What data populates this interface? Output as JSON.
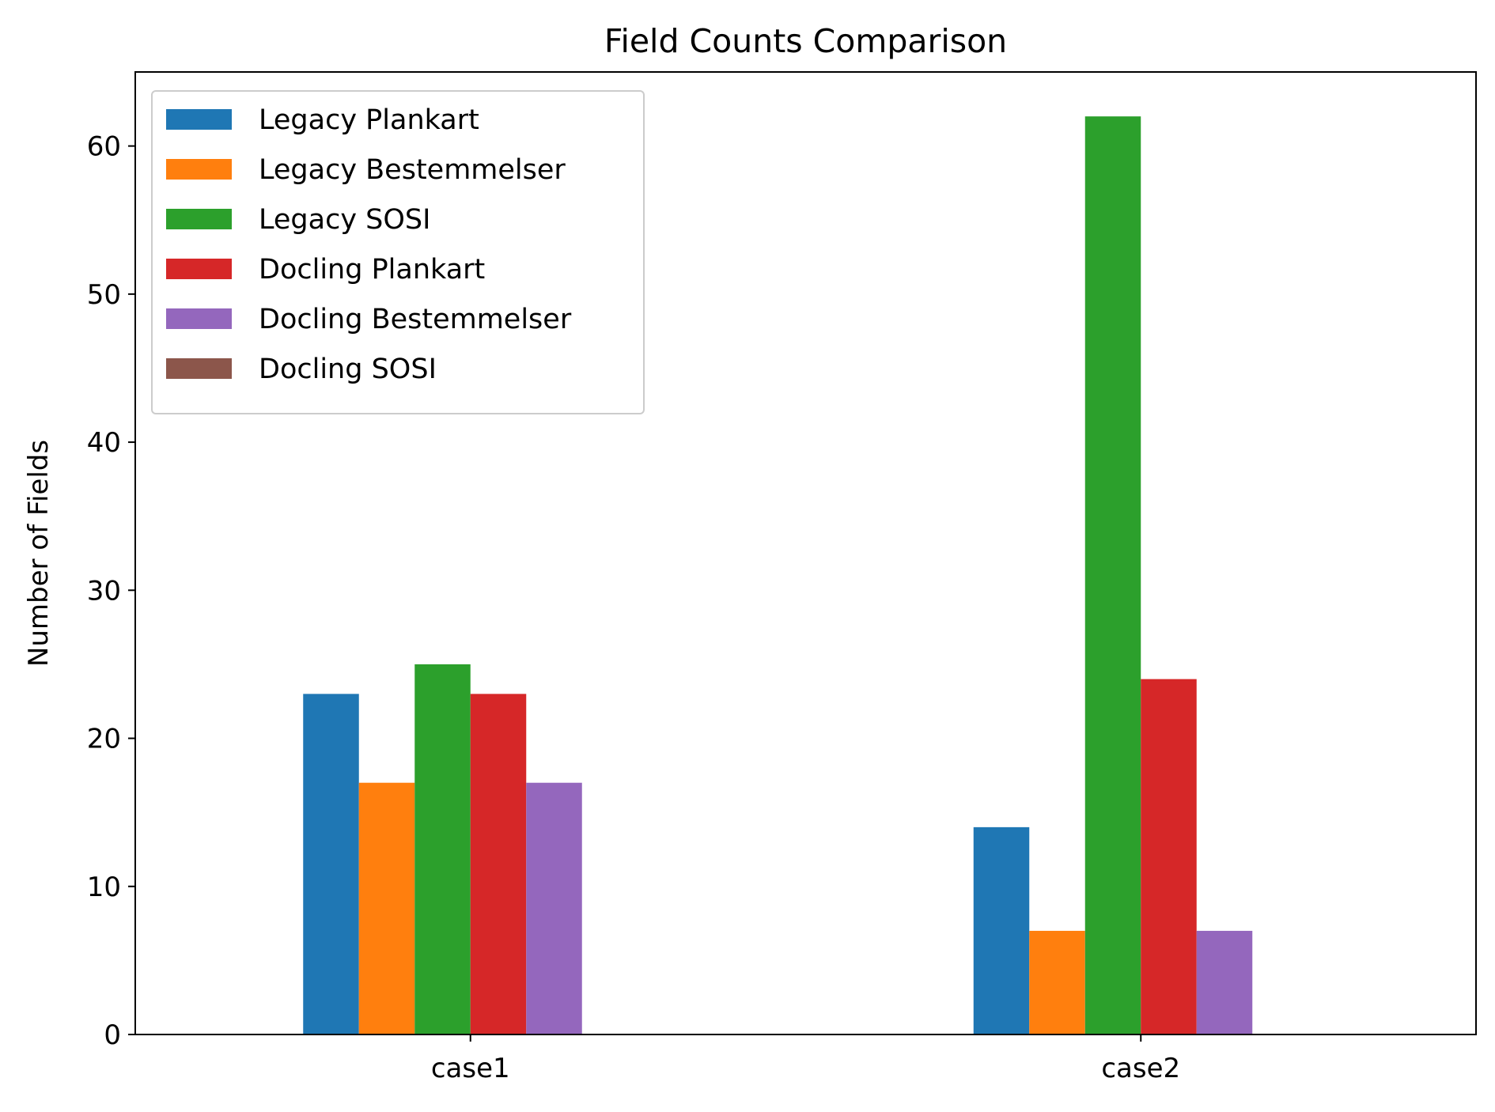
{
  "chart_data": {
    "type": "bar",
    "title": "Field Counts Comparison",
    "xlabel": "",
    "ylabel": "Number of Fields",
    "categories": [
      "case1",
      "case2"
    ],
    "ylim": [
      0,
      65
    ],
    "yticks": [
      0,
      10,
      20,
      30,
      40,
      50,
      60
    ],
    "grid": false,
    "legend_position": "top-left",
    "series": [
      {
        "name": "Legacy Plankart",
        "color": "#1f77b4",
        "values": [
          23,
          14
        ]
      },
      {
        "name": "Legacy Bestemmelser",
        "color": "#ff7f0e",
        "values": [
          17,
          7
        ]
      },
      {
        "name": "Legacy SOSI",
        "color": "#2ca02c",
        "values": [
          25,
          62
        ]
      },
      {
        "name": "Docling Plankart",
        "color": "#d62728",
        "values": [
          23,
          24
        ]
      },
      {
        "name": "Docling Bestemmelser",
        "color": "#9467bd",
        "values": [
          17,
          7
        ]
      },
      {
        "name": "Docling SOSI",
        "color": "#8c564b",
        "values": [
          0,
          0
        ]
      }
    ]
  }
}
